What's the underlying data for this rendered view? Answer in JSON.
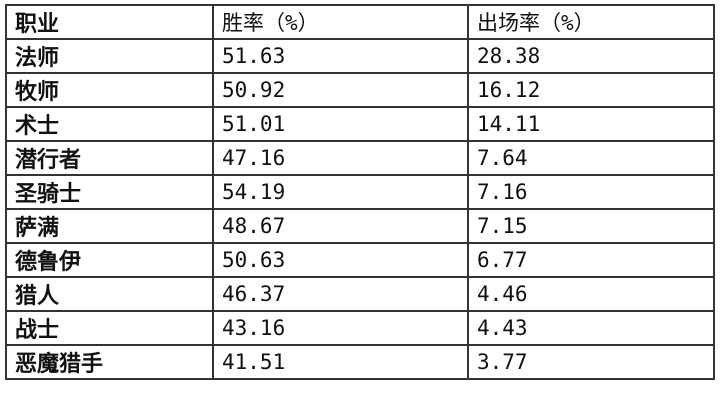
{
  "table": {
    "headers": [
      "职业",
      "胜率（%）",
      "出场率（%）"
    ],
    "rows": [
      [
        "法师",
        "51.63",
        "28.38"
      ],
      [
        "牧师",
        "50.92",
        "16.12"
      ],
      [
        "术士",
        "51.01",
        "14.11"
      ],
      [
        "潜行者",
        "47.16",
        "7.64"
      ],
      [
        "圣骑士",
        "54.19",
        "7.16"
      ],
      [
        "萨满",
        "48.67",
        "7.15"
      ],
      [
        "德鲁伊",
        "50.63",
        "6.77"
      ],
      [
        "猎人",
        "46.37",
        "4.46"
      ],
      [
        "战士",
        "43.16",
        "4.43"
      ],
      [
        "恶魔猎手",
        "41.51",
        "3.77"
      ]
    ]
  }
}
